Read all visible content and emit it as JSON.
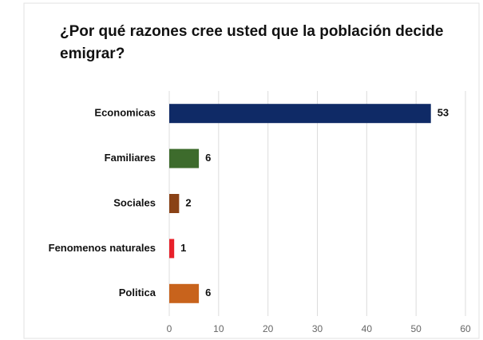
{
  "chart_data": {
    "type": "barh",
    "title": "¿Por qué razones cree usted que la población decide emigrar?",
    "categories": [
      "Economicas",
      "Familiares",
      "Sociales",
      "Fenomenos naturales",
      "Politica"
    ],
    "values": [
      53,
      6,
      2,
      1,
      6
    ],
    "colors": [
      "#0f2a66",
      "#3d6b2c",
      "#8a4216",
      "#e8202a",
      "#c8631c"
    ],
    "xlim": [
      0,
      60
    ],
    "xticks": [
      0,
      10,
      20,
      30,
      40,
      50,
      60
    ],
    "grid": true
  }
}
